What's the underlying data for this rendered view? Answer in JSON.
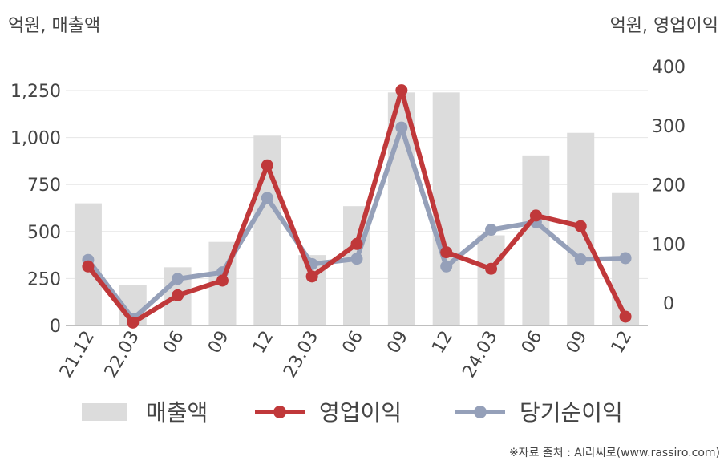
{
  "chart_data": {
    "type": "bar",
    "left_axis_unit": "억원, 매출액",
    "right_axis_unit": "억원, 영업이익",
    "categories": [
      "21.12",
      "22.03",
      "06",
      "09",
      "12",
      "23.03",
      "06",
      "09",
      "12",
      "24.03",
      "06",
      "09",
      "12"
    ],
    "left_ylim": [
      0,
      1350
    ],
    "left_ticks": [
      "0",
      "250",
      "500",
      "750",
      "1,000",
      "1,250"
    ],
    "left_tick_values": [
      0,
      250,
      500,
      750,
      1000,
      1250
    ],
    "right_ylim": [
      -40,
      400
    ],
    "right_ticks": [
      "0",
      "100",
      "200",
      "300",
      "400"
    ],
    "right_tick_values": [
      0,
      100,
      200,
      300,
      400
    ],
    "grid": true,
    "legend_position": "bottom",
    "series": [
      {
        "name": "매출액",
        "type": "bar",
        "axis": "left",
        "color": "#dcdcdc",
        "values": [
          650,
          215,
          310,
          445,
          1010,
          375,
          635,
          1240,
          1240,
          480,
          905,
          1025,
          705
        ]
      },
      {
        "name": "영업이익",
        "type": "line",
        "axis": "right",
        "color": "#c0383a",
        "values": [
          62,
          -33,
          13,
          38,
          233,
          45,
          100,
          360,
          86,
          58,
          148,
          130,
          -23
        ]
      },
      {
        "name": "당기순이익",
        "type": "line",
        "axis": "right",
        "color": "#95a0b9",
        "values": [
          73,
          -27,
          41,
          52,
          178,
          66,
          75,
          297,
          62,
          124,
          137,
          74,
          76
        ]
      }
    ]
  },
  "source": "※자료 출처 : AI라씨로(www.rassiro.com)"
}
